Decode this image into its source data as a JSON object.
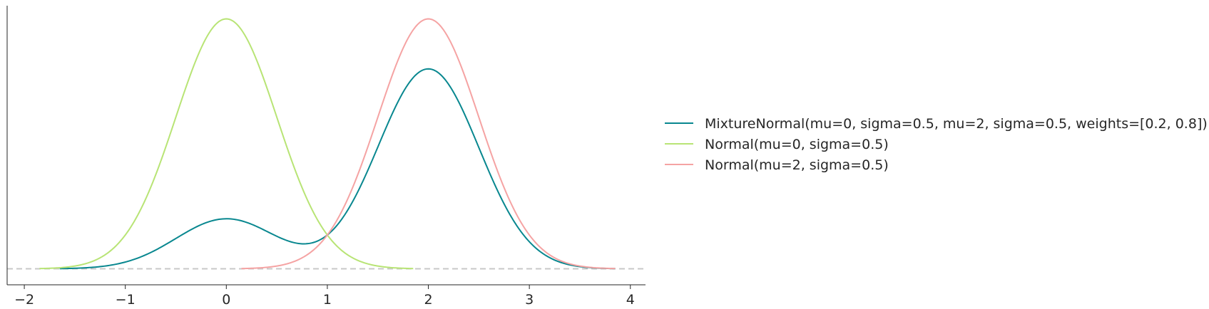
{
  "chart_data": {
    "type": "line",
    "title": "",
    "xlabel": "",
    "ylabel": "",
    "xlim": [
      -2.17,
      4.15
    ],
    "xticks": [
      -2,
      -1,
      0,
      1,
      2,
      3,
      4
    ],
    "xtick_labels": [
      "−2",
      "−1",
      "0",
      "1",
      "2",
      "3",
      "4"
    ],
    "ylim": [
      -0.051,
      0.84
    ],
    "yticks_visible": false,
    "grid": false,
    "baseline": {
      "y": 0,
      "style": "dashed",
      "color": "#c8c8c8"
    },
    "legend_position": "right",
    "series": [
      {
        "name": "MixtureNormal(mu=0, sigma=0.5, mu=2, sigma=0.5, weights=[0.2, 0.8])",
        "color": "#08878f",
        "kind": "mixture_normal",
        "components": [
          {
            "mu": 0,
            "sigma": 0.5,
            "weight": 0.2
          },
          {
            "mu": 2,
            "sigma": 0.5,
            "weight": 0.8
          }
        ],
        "x_range": [
          -1.65,
          3.85
        ]
      },
      {
        "name": "Normal(mu=0, sigma=0.5)",
        "color": "#b8e475",
        "kind": "normal",
        "mu": 0,
        "sigma": 0.5,
        "x_range": [
          -1.85,
          1.85
        ]
      },
      {
        "name": "Normal(mu=2, sigma=0.5)",
        "color": "#f5a3a3",
        "kind": "normal",
        "mu": 2,
        "sigma": 0.5,
        "x_range": [
          0.15,
          3.85
        ]
      }
    ]
  }
}
